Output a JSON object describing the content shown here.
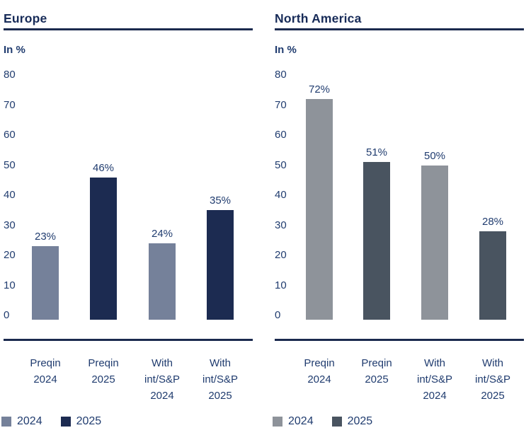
{
  "colors": {
    "navy_line": "#1b2a4e",
    "navy_text": "#203c6f",
    "title_text": "#172b58",
    "europe_2024_bar": "#75819a",
    "europe_2025_bar": "#1c2b51",
    "na_2024_bar": "#8e939a",
    "na_2025_bar": "#495460",
    "background": "#ffffff"
  },
  "chart_data": [
    {
      "type": "bar",
      "title": "Europe",
      "ylabel": "In %",
      "xlabel": "",
      "ylim": [
        0,
        80
      ],
      "y_ticks": [
        80,
        70,
        60,
        50,
        40,
        30,
        20,
        10,
        0
      ],
      "grid": false,
      "categories": [
        "Preqin 2024",
        "Preqin 2025",
        "With int/S&P 2024",
        "With int/S&P 2025"
      ],
      "category_lines": [
        [
          "Preqin",
          "2024"
        ],
        [
          "Preqin",
          "2025"
        ],
        [
          "With",
          "int/S&P",
          "2024"
        ],
        [
          "With",
          "int/S&P",
          "2025"
        ]
      ],
      "bars": [
        {
          "category": "Preqin 2024",
          "series": "2024",
          "value": 23,
          "label": "23%",
          "color": "#75819a"
        },
        {
          "category": "Preqin 2025",
          "series": "2025",
          "value": 46,
          "label": "46%",
          "color": "#1c2b51"
        },
        {
          "category": "With int/S&P 2024",
          "series": "2024",
          "value": 24,
          "label": "24%",
          "color": "#75819a"
        },
        {
          "category": "With int/S&P 2025",
          "series": "2025",
          "value": 35,
          "label": "35%",
          "color": "#1c2b51"
        }
      ],
      "legend": {
        "position": "bottom-left",
        "items": [
          {
            "label": "2024",
            "color": "#75819a"
          },
          {
            "label": "2025",
            "color": "#1c2b51"
          }
        ]
      }
    },
    {
      "type": "bar",
      "title": "North America",
      "ylabel": "In %",
      "xlabel": "",
      "ylim": [
        0,
        80
      ],
      "y_ticks": [
        80,
        70,
        60,
        50,
        40,
        30,
        20,
        10,
        0
      ],
      "grid": false,
      "categories": [
        "Preqin 2024",
        "Preqin 2025",
        "With int/S&P 2024",
        "With int/S&P 2025"
      ],
      "category_lines": [
        [
          "Preqin",
          "2024"
        ],
        [
          "Preqin",
          "2025"
        ],
        [
          "With",
          "int/S&P",
          "2024"
        ],
        [
          "With",
          "int/S&P",
          "2025"
        ]
      ],
      "bars": [
        {
          "category": "Preqin 2024",
          "series": "2024",
          "value": 72,
          "label": "72%",
          "color": "#8e939a"
        },
        {
          "category": "Preqin 2025",
          "series": "2025",
          "value": 51,
          "label": "51%",
          "color": "#495460"
        },
        {
          "category": "With int/S&P 2024",
          "series": "2024",
          "value": 50,
          "label": "50%",
          "color": "#8e939a"
        },
        {
          "category": "With int/S&P 2025",
          "series": "2025",
          "value": 28,
          "label": "28%",
          "color": "#495460"
        }
      ],
      "legend": {
        "position": "bottom-left",
        "items": [
          {
            "label": "2024",
            "color": "#8e939a"
          },
          {
            "label": "2025",
            "color": "#495460"
          }
        ]
      }
    }
  ]
}
